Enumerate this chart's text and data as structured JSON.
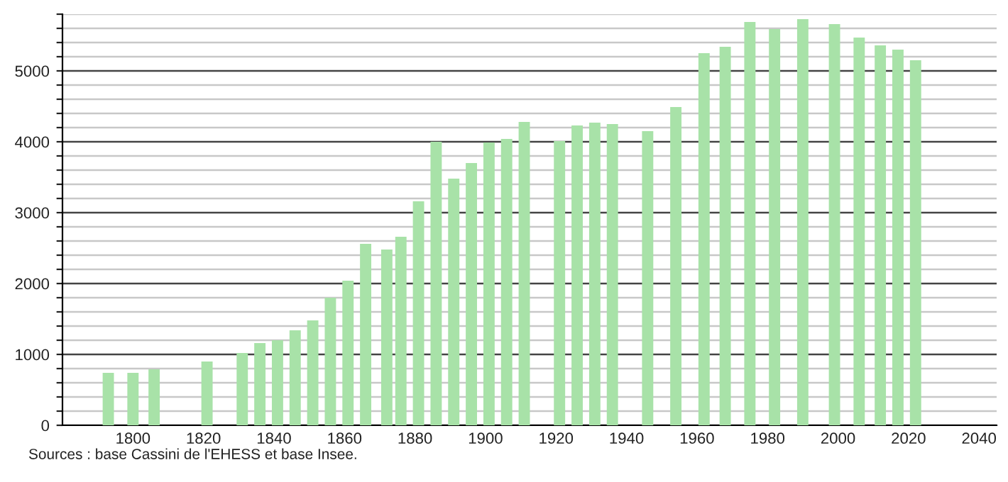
{
  "chart_data": {
    "type": "bar",
    "x": [
      1793,
      1800,
      1806,
      1821,
      1831,
      1836,
      1841,
      1846,
      1851,
      1856,
      1861,
      1866,
      1872,
      1876,
      1881,
      1886,
      1891,
      1896,
      1901,
      1906,
      1911,
      1921,
      1926,
      1931,
      1936,
      1946,
      1954,
      1962,
      1968,
      1975,
      1982,
      1990,
      1999,
      2006,
      2012,
      2017,
      2022
    ],
    "values": [
      740,
      740,
      790,
      900,
      1020,
      1160,
      1200,
      1340,
      1480,
      1800,
      2040,
      2560,
      2480,
      2660,
      3160,
      4000,
      3480,
      3700,
      3990,
      4040,
      4280,
      4010,
      4230,
      4270,
      4250,
      4150,
      4490,
      5250,
      5340,
      5690,
      5590,
      5730,
      5660,
      5470,
      5360,
      5300,
      5150
    ],
    "color": "#a8e2a8",
    "xlim": [
      1780,
      2045
    ],
    "xticks": [
      1800,
      1820,
      1840,
      1860,
      1880,
      1900,
      1920,
      1940,
      1960,
      1980,
      2000,
      2020,
      2040
    ],
    "ylim": [
      0,
      5800
    ],
    "yticks": [
      0,
      {
        "value": 200,
        "label": null
      },
      {
        "value": 400,
        "label": null
      },
      {
        "value": 600,
        "label": null
      },
      {
        "value": 800,
        "label": null
      },
      1000,
      {
        "value": 1200,
        "label": null
      },
      {
        "value": 1400,
        "label": null
      },
      {
        "value": 1600,
        "label": null
      },
      {
        "value": 1800,
        "label": null
      },
      2000,
      {
        "value": 2200,
        "label": null
      },
      {
        "value": 2400,
        "label": null
      },
      {
        "value": 2600,
        "label": null
      },
      {
        "value": 2800,
        "label": null
      },
      3000,
      {
        "value": 3200,
        "label": null
      },
      {
        "value": 3400,
        "label": null
      },
      {
        "value": 3600,
        "label": null
      },
      {
        "value": 3800,
        "label": null
      },
      4000,
      {
        "value": 4200,
        "label": null
      },
      {
        "value": 4400,
        "label": null
      },
      {
        "value": 4600,
        "label": null
      },
      {
        "value": 4800,
        "label": null
      },
      5000,
      {
        "value": 5200,
        "label": null
      },
      {
        "value": 5400,
        "label": null
      },
      {
        "value": 5600,
        "label": null
      },
      {
        "value": 5800,
        "label": null
      }
    ],
    "grid": "y",
    "annotations": [
      "Sources : base Cassini de l'EHESS et base Insee."
    ]
  }
}
